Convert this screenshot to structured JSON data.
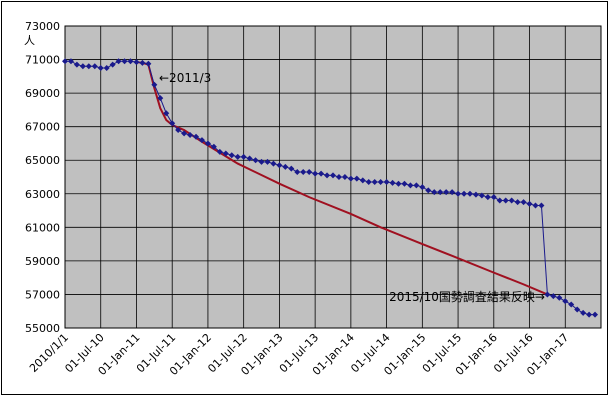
{
  "chart_data": {
    "type": "line",
    "ylabel": "人",
    "ylim": [
      55000,
      73000
    ],
    "y_ticks": [
      "55000",
      "57000",
      "59000",
      "61000",
      "63000",
      "65000",
      "67000",
      "69000",
      "71000",
      "73000"
    ],
    "x_ticks": [
      "2010/1/1",
      "01-Jul-10",
      "01-Jan-11",
      "01-Jul-11",
      "01-Jan-12",
      "01-Jul-12",
      "01-Jan-13",
      "01-Jul-13",
      "01-Jan-14",
      "01-Jul-14",
      "01-Jan-15",
      "01-Jul-15",
      "01-Jan-16",
      "01-Jul-16",
      "01-Jan-17"
    ],
    "grid": true,
    "legend": "none",
    "colors": {
      "plot_bg": "#c0c0c0",
      "series": "#1a1a8c",
      "trend": "#a01020"
    },
    "annotations": [
      {
        "text": "←2011/3"
      },
      {
        "text": "2015/10国勢調査結果反映→"
      }
    ],
    "series": [
      {
        "x": [
          "2010-01",
          "2010-02",
          "2010-03",
          "2010-04",
          "2010-05",
          "2010-06",
          "2010-07",
          "2010-08",
          "2010-09",
          "2010-10",
          "2010-11",
          "2010-12",
          "2011-01",
          "2011-02",
          "2011-03",
          "2011-04",
          "2011-05",
          "2011-06",
          "2011-07",
          "2011-08",
          "2011-09",
          "2011-10",
          "2011-11",
          "2011-12",
          "2012-01",
          "2012-02",
          "2012-03",
          "2012-04",
          "2012-05",
          "2012-06",
          "2012-07",
          "2012-08",
          "2012-09",
          "2012-10",
          "2012-11",
          "2012-12",
          "2013-01",
          "2013-02",
          "2013-03",
          "2013-04",
          "2013-05",
          "2013-06",
          "2013-07",
          "2013-08",
          "2013-09",
          "2013-10",
          "2013-11",
          "2013-12",
          "2014-01",
          "2014-02",
          "2014-03",
          "2014-04",
          "2014-05",
          "2014-06",
          "2014-07",
          "2014-08",
          "2014-09",
          "2014-10",
          "2014-11",
          "2014-12",
          "2015-01",
          "2015-02",
          "2015-03",
          "2015-04",
          "2015-05",
          "2015-06",
          "2015-07",
          "2015-08",
          "2015-09",
          "2015-10",
          "2015-11",
          "2015-12",
          "2016-01",
          "2016-02",
          "2016-03",
          "2016-04",
          "2016-05",
          "2016-06",
          "2016-07",
          "2016-08",
          "2016-09",
          "2016-10",
          "2016-11",
          "2016-12",
          "2017-01",
          "2017-02",
          "2017-03",
          "2017-04",
          "2017-05",
          "2017-06"
        ],
        "values": [
          70900,
          70900,
          70700,
          70600,
          70600,
          70600,
          70500,
          70500,
          70700,
          70900,
          70900,
          70900,
          70850,
          70800,
          70750,
          69500,
          68700,
          67800,
          67200,
          66800,
          66600,
          66500,
          66400,
          66200,
          66000,
          65800,
          65500,
          65400,
          65300,
          65200,
          65200,
          65100,
          65000,
          64900,
          64900,
          64800,
          64700,
          64600,
          64500,
          64300,
          64300,
          64300,
          64200,
          64200,
          64100,
          64100,
          64000,
          64000,
          63900,
          63900,
          63800,
          63700,
          63700,
          63700,
          63700,
          63650,
          63600,
          63600,
          63500,
          63500,
          63400,
          63200,
          63100,
          63100,
          63100,
          63100,
          63000,
          63000,
          63000,
          62950,
          62900,
          62800,
          62800,
          62600,
          62600,
          62600,
          62500,
          62500,
          62400,
          62300,
          62300,
          57000,
          56900,
          56800,
          56600,
          56400,
          56100,
          55900,
          55800,
          55800
        ],
        "marker": "diamond"
      },
      {
        "x": [
          "2011-01",
          "2011-02",
          "2011-03",
          "2011-04",
          "2011-05",
          "2011-06",
          "2011-07",
          "2011-09",
          "2011-12",
          "2012-06",
          "2013-01",
          "2013-06",
          "2014-01",
          "2014-06",
          "2015-01",
          "2015-06",
          "2016-01",
          "2016-06",
          "2016-10"
        ],
        "values": [
          70850,
          70800,
          70700,
          69300,
          68100,
          67400,
          67100,
          66800,
          66100,
          64800,
          63600,
          62800,
          61800,
          61000,
          60000,
          59300,
          58300,
          57600,
          57000
        ],
        "marker": "none"
      }
    ]
  }
}
